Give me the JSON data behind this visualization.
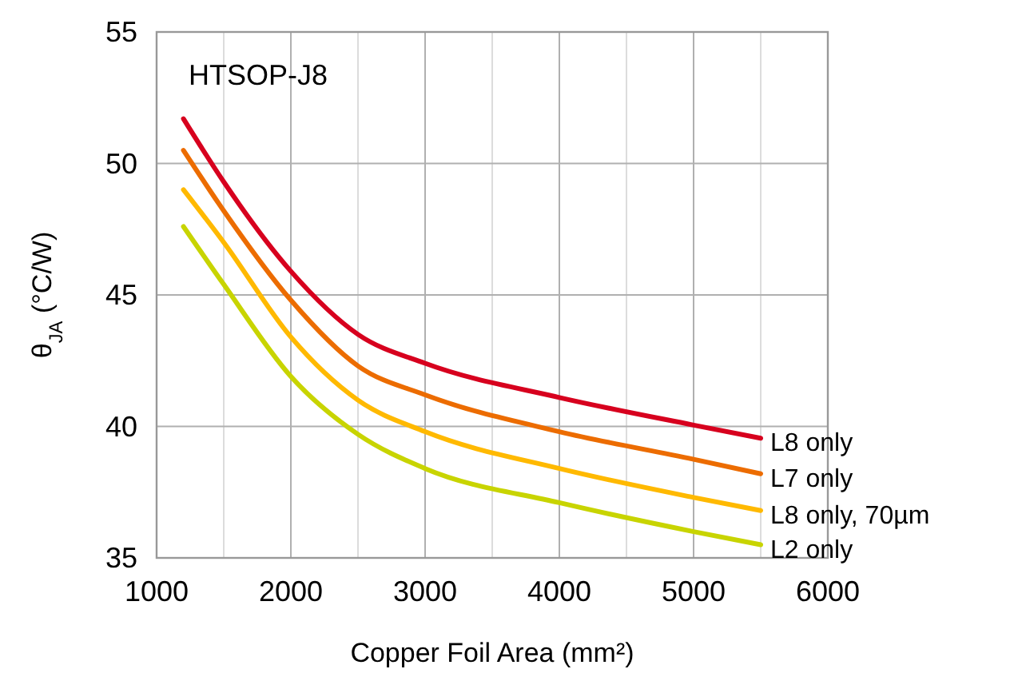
{
  "chart_data": {
    "type": "line",
    "xlabel": "Copper Foil Area (mm²)",
    "ylabel": "θ$_{JA}$ (°C/W)",
    "annotations": [
      "HTSOP-J8"
    ],
    "x": [
      1200,
      1500,
      2000,
      2500,
      3000,
      4000,
      5000,
      5500
    ],
    "xlim": [
      1000,
      6000
    ],
    "xticks": [
      1000,
      {
        "value": 1500,
        "label": null
      },
      2000,
      {
        "value": 2500,
        "label": null
      },
      3000,
      {
        "value": 3500,
        "label": null
      },
      4000,
      {
        "value": 4500,
        "label": null
      },
      5000,
      {
        "value": 5500,
        "label": null
      },
      6000
    ],
    "ylim": [
      35,
      55
    ],
    "yticks": [
      35,
      40,
      45,
      50,
      55
    ],
    "grid": true,
    "marker": "none",
    "line_style": "solid",
    "series": [
      {
        "name": "L8 only",
        "color": "#d7001e",
        "values": [
          51.7,
          49.3,
          45.9,
          43.5,
          42.4,
          41.1,
          40.05,
          39.55
        ]
      },
      {
        "name": "L7 only",
        "color": "#ec6c00",
        "values": [
          50.5,
          48.2,
          44.8,
          42.3,
          41.2,
          39.8,
          38.75,
          38.2
        ]
      },
      {
        "name": "L8 only, 70µm",
        "color": "#ffb900",
        "values": [
          49.0,
          47.0,
          43.4,
          41.0,
          39.8,
          38.4,
          37.3,
          36.8
        ]
      },
      {
        "name": "L2 only",
        "color": "#c8d400",
        "values": [
          47.6,
          45.4,
          41.9,
          39.7,
          38.4,
          37.1,
          36.0,
          35.5
        ]
      }
    ]
  }
}
